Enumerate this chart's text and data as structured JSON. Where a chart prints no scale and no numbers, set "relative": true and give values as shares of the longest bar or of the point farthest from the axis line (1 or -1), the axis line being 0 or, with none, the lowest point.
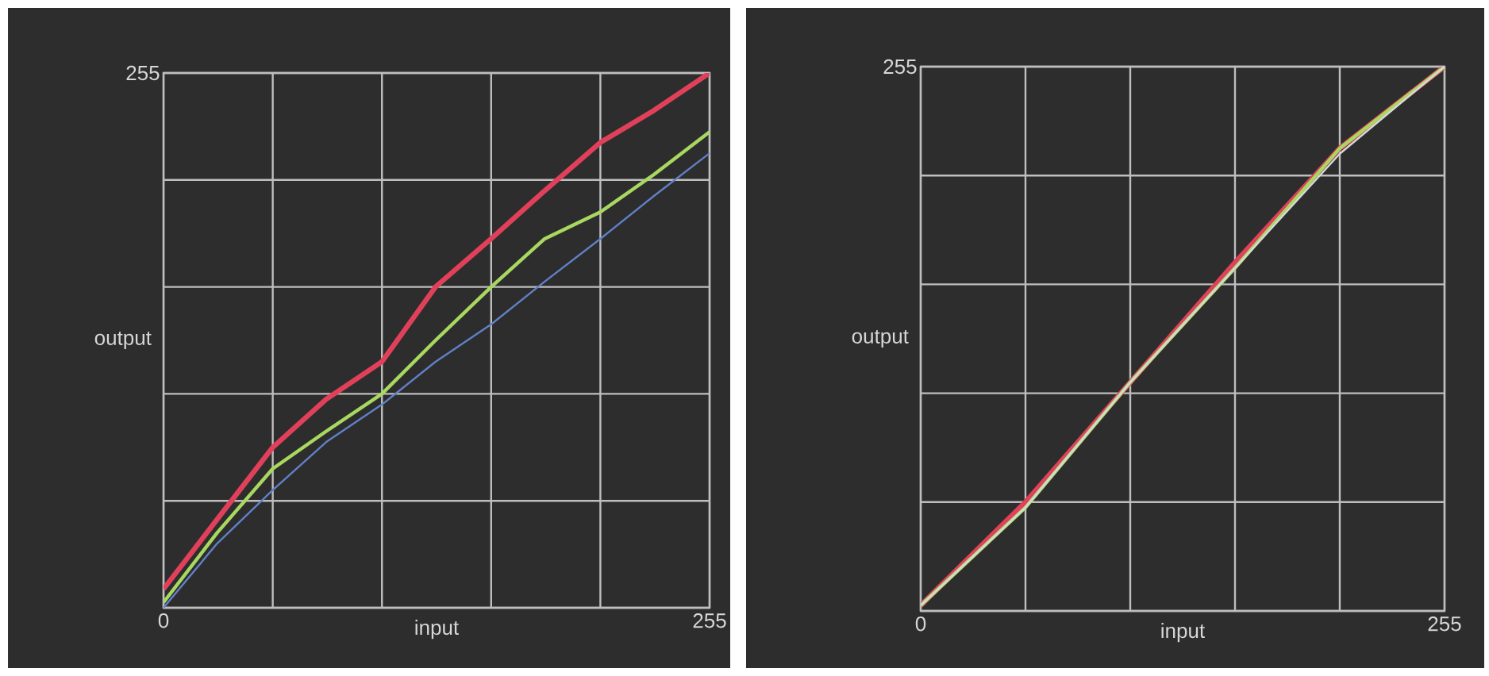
{
  "chart_data": [
    {
      "type": "line",
      "xlabel": "input",
      "ylabel": "output",
      "relative": true,
      "annotations": [
        "255"
      ],
      "x": [
        0,
        25,
        51,
        76,
        102,
        127,
        153,
        178,
        204,
        229,
        255
      ],
      "xlim": [
        0,
        255
      ],
      "xticks": [
        0,
        {
          "value": 51,
          "label": null
        },
        {
          "value": 102,
          "label": null
        },
        {
          "value": 153,
          "label": null
        },
        {
          "value": 204,
          "label": null
        },
        255
      ],
      "grid": true,
      "series": [
        {
          "color": "#e0405a",
          "values": [
            0.035,
            0.165,
            0.3,
            0.39,
            0.46,
            0.6,
            0.69,
            0.78,
            0.87,
            0.93,
            1
          ]
        },
        {
          "color": "#a8d860",
          "values": [
            0.01,
            0.14,
            0.26,
            0.33,
            0.4,
            0.5,
            0.6,
            0.69,
            0.74,
            0.81,
            0.89
          ]
        },
        {
          "color": "#6080c8",
          "values": [
            0.0,
            0.12,
            0.22,
            0.31,
            0.38,
            0.46,
            0.53,
            0.61,
            0.69,
            0.77,
            0.85
          ]
        }
      ]
    },
    {
      "type": "line",
      "xlabel": "input",
      "ylabel": "output",
      "relative": true,
      "annotations": [
        "255"
      ],
      "x": [
        0,
        51,
        102,
        153,
        204,
        255
      ],
      "xlim": [
        0,
        255
      ],
      "xticks": [
        0,
        {
          "value": 51,
          "label": null
        },
        {
          "value": 102,
          "label": null
        },
        {
          "value": 153,
          "label": null
        },
        {
          "value": 204,
          "label": null
        },
        255
      ],
      "grid": true,
      "series": [
        {
          "color": "#e0405a",
          "values": [
            0.01,
            0.2,
            0.42,
            0.64,
            0.85,
            1
          ]
        },
        {
          "color": "#a8d860",
          "values": [
            0.01,
            0.19,
            0.42,
            0.63,
            0.85,
            1
          ]
        },
        {
          "color": "#d8d8d8",
          "values": [
            0.01,
            0.19,
            0.42,
            0.63,
            0.84,
            1
          ]
        }
      ]
    }
  ]
}
